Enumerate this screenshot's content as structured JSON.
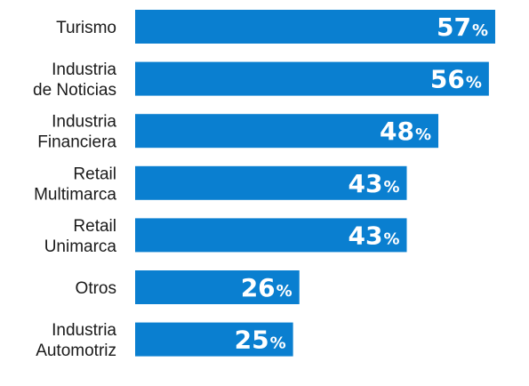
{
  "chart_data": {
    "type": "bar",
    "orientation": "horizontal",
    "categories": [
      [
        "Turismo"
      ],
      [
        "Industria",
        "de Noticias"
      ],
      [
        "Industria",
        "Financiera"
      ],
      [
        "Retail",
        "Multimarca"
      ],
      [
        "Retail",
        "Unimarca"
      ],
      [
        "Otros"
      ],
      [
        "Industria",
        "Automotriz"
      ]
    ],
    "values": [
      57,
      56,
      48,
      43,
      43,
      26,
      25
    ],
    "value_suffix": "%",
    "title": "",
    "xlabel": "",
    "ylabel": "",
    "xlim": [
      0,
      70
    ],
    "grid": false,
    "legend": "none",
    "colors": {
      "bar": "#0a7fd0",
      "value_text": "#ffffff",
      "label_text": "#1a1a1a"
    }
  }
}
